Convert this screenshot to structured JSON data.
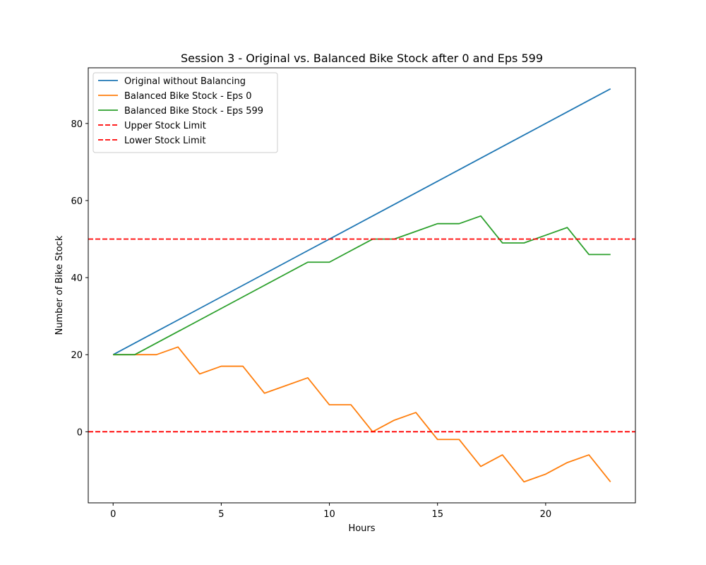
{
  "chart_data": {
    "type": "line",
    "title": "Session 3 - Original vs. Balanced Bike Stock after 0 and Eps 599",
    "xlabel": "Hours",
    "ylabel": "Number of Bike Stock",
    "xlim": [
      -1.15,
      24.15
    ],
    "ylim": [
      -18.45,
      94.45
    ],
    "xticks": [
      0,
      5,
      10,
      15,
      20
    ],
    "yticks": [
      0,
      20,
      40,
      60,
      80
    ],
    "grid": false,
    "legend_position": "top-left",
    "x": [
      0,
      1,
      2,
      3,
      4,
      5,
      6,
      7,
      8,
      9,
      10,
      11,
      12,
      13,
      14,
      15,
      16,
      17,
      18,
      19,
      20,
      21,
      22,
      23
    ],
    "series": [
      {
        "name": "Original without Balancing",
        "color": "#1f77b4",
        "style": "solid",
        "values": [
          20,
          23,
          26,
          29,
          32,
          35,
          38,
          41,
          44,
          47,
          50,
          53,
          56,
          59,
          62,
          65,
          68,
          71,
          74,
          77,
          80,
          83,
          86,
          89
        ]
      },
      {
        "name": "Balanced Bike Stock - Eps 0",
        "color": "#ff7f0e",
        "style": "solid",
        "values": [
          20,
          20,
          20,
          22,
          15,
          17,
          17,
          10,
          12,
          14,
          7,
          7,
          0,
          3,
          5,
          -2,
          -2,
          -9,
          -6,
          -13,
          -11,
          -8,
          -6,
          -13
        ]
      },
      {
        "name": "Balanced Bike Stock - Eps 599",
        "color": "#2ca02c",
        "style": "solid",
        "values": [
          20,
          20,
          23,
          26,
          29,
          32,
          35,
          38,
          41,
          44,
          44,
          47,
          50,
          50,
          52,
          54,
          54,
          56,
          49,
          49,
          51,
          53,
          46,
          46
        ]
      }
    ],
    "hlines": [
      {
        "name": "Upper Stock Limit",
        "value": 50,
        "color": "#ff0000",
        "style": "dashed"
      },
      {
        "name": "Lower Stock Limit",
        "value": 0,
        "color": "#ff0000",
        "style": "dashed"
      }
    ]
  }
}
